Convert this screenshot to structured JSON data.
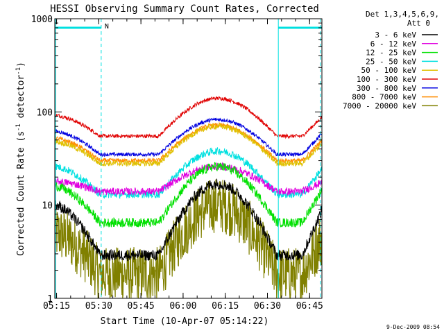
{
  "chart_data": {
    "type": "line",
    "title": "HESSI Observing Summary Count Rates, Corrected",
    "xlabel": "Start Time (10-Apr-07 05:14:22)",
    "ylabel_main": "Corrected Count Rate (s",
    "ylabel_sup1": "-1",
    "ylabel_mid": " detector",
    "ylabel_sup2": "-1",
    "ylabel_end": ")",
    "yscale": "log",
    "ylim": [
      1,
      1000
    ],
    "y_ticks": [
      {
        "value": 1,
        "label": "1"
      },
      {
        "value": 10,
        "label": "10"
      },
      {
        "value": 100,
        "label": "100"
      },
      {
        "value": 1000,
        "label": "1000"
      }
    ],
    "xlim_minutes": [
      0,
      95
    ],
    "x_ticks": [
      {
        "minute": 0.63,
        "label": "05:15"
      },
      {
        "minute": 15.63,
        "label": "05:30"
      },
      {
        "minute": 30.63,
        "label": "05:45"
      },
      {
        "minute": 45.63,
        "label": "06:00"
      },
      {
        "minute": 60.63,
        "label": "06:15"
      },
      {
        "minute": 75.63,
        "label": "06:30"
      },
      {
        "minute": 90.63,
        "label": "06:45"
      }
    ],
    "legend_header_1": "Det 1,3,4,5,6,9,",
    "legend_header_2": "Att 0",
    "legend_position": "top-right outside",
    "series": [
      {
        "name": "3 - 6 keV",
        "color": "#000000",
        "low": 2.9,
        "high": 17,
        "start": 10,
        "jitter": 0.06
      },
      {
        "name": "6 - 12 keV",
        "color": "#e000e0",
        "low": 14,
        "high": 26,
        "start": 18,
        "jitter": 0.04
      },
      {
        "name": "12 - 25 keV",
        "color": "#00e000",
        "low": 6.5,
        "high": 26,
        "start": 16,
        "jitter": 0.05
      },
      {
        "name": "25 - 50 keV",
        "color": "#00e0e0",
        "low": 13,
        "high": 38,
        "start": 26,
        "jitter": 0.04
      },
      {
        "name": "50 - 100 keV",
        "color": "#e0c000",
        "low": 28,
        "high": 70,
        "start": 48,
        "jitter": 0.03
      },
      {
        "name": "100 - 300 keV",
        "color": "#e00000",
        "low": 55,
        "high": 140,
        "start": 92,
        "jitter": 0.02
      },
      {
        "name": "300 - 800 keV",
        "color": "#0000e0",
        "low": 35,
        "high": 83,
        "start": 62,
        "jitter": 0.02
      },
      {
        "name": "800 - 7000 keV",
        "color": "#ff8c00",
        "low": 30,
        "high": 72,
        "start": 52,
        "jitter": 0.025
      },
      {
        "name": "7000 - 20000 keV",
        "color": "#808000",
        "low": 1.8,
        "high": 10,
        "start": 5,
        "jitter": 0.12
      }
    ],
    "flag_bars": [
      {
        "start_min": 0.3,
        "end_min": 16.5,
        "y": 800,
        "label": ""
      },
      {
        "start_min": 16.5,
        "end_min": 16.5,
        "y": 800,
        "label": "N"
      },
      {
        "start_min": 79.5,
        "end_min": 95,
        "y": 800,
        "label": ""
      }
    ],
    "vlines_solid": [
      0.3,
      79.5
    ],
    "vlines_dashed": [
      16.5,
      94.5
    ],
    "marker_label": "N",
    "timestamp": "9-Dec-2009 08:54"
  }
}
